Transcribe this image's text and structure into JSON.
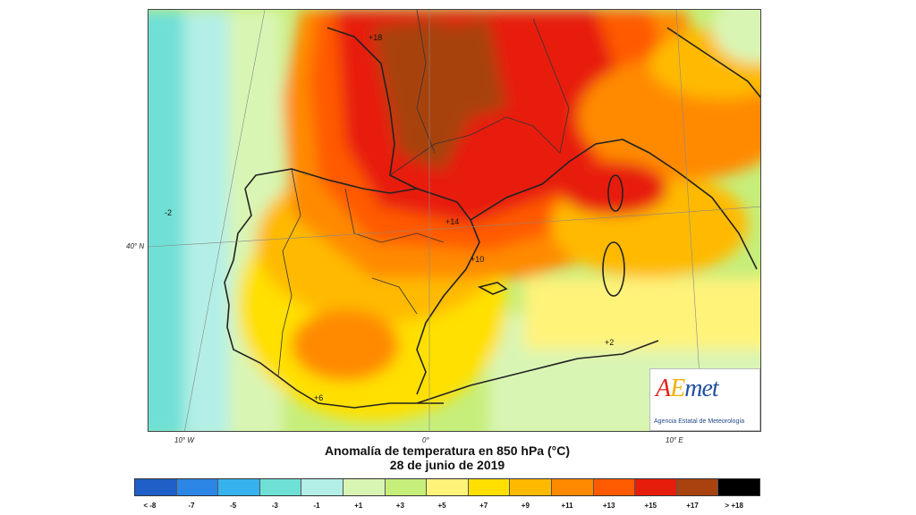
{
  "map": {
    "lon_labels": [
      "10° W",
      "0°",
      "10° E"
    ],
    "lat_labels": [
      "40° N"
    ],
    "contour_labels": [
      "+18",
      "+14",
      "+10",
      "-2",
      "+2",
      "+6"
    ]
  },
  "title": "Anomalía de temperatura en 850 hPa (°C)",
  "subtitle": "28 de junio de 2019",
  "legend": {
    "colors": [
      "#1f5fc8",
      "#2b86e6",
      "#36b3ee",
      "#6fe0d6",
      "#b4efe7",
      "#d9f5b4",
      "#c6ee7a",
      "#fff37a",
      "#ffe000",
      "#ffba00",
      "#ff8a00",
      "#ff5a00",
      "#e71d0c",
      "#a8420e",
      "#000000"
    ],
    "labels": [
      "< -8",
      "-7",
      "-5",
      "-3",
      "-1",
      "+1",
      "+3",
      "+5",
      "+7",
      "+9",
      "+11",
      "+13",
      "+15",
      "+17",
      "> +18"
    ]
  },
  "logo": {
    "mark": "AEmet",
    "org": "Agencia Estatal de Meteorología"
  }
}
